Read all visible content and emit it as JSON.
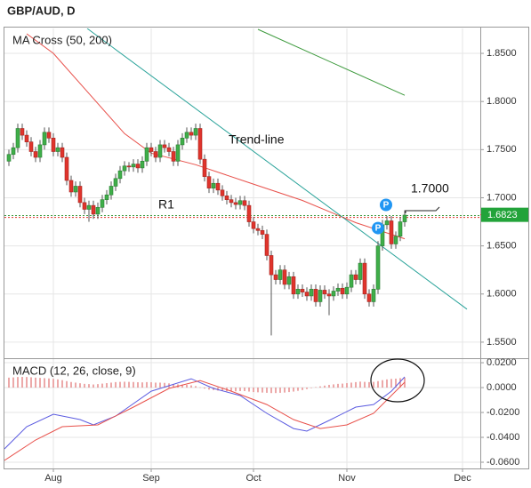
{
  "title": "GBP/AUD, D",
  "chart_data": [
    {
      "type": "candlestick",
      "title": "MA Cross (50, 200)",
      "xlim": [
        0,
        107
      ],
      "ylim": [
        1.5333,
        1.8759
      ],
      "grid": true,
      "yticks": [
        {
          "value": 1.55,
          "label": "1.5500"
        },
        {
          "value": 1.6,
          "label": "1.6000"
        },
        {
          "value": 1.65,
          "label": "1.6500"
        },
        {
          "value": 1.7,
          "label": "1.7000"
        },
        {
          "value": 1.75,
          "label": "1.7500"
        },
        {
          "value": 1.8,
          "label": "1.8000"
        },
        {
          "value": 1.85,
          "label": "1.8500"
        }
      ],
      "up_color": "#3fae49",
      "down_color": "#e0342c",
      "x": [
        1,
        2,
        3,
        4,
        5,
        6,
        7,
        8,
        9,
        10,
        11,
        12,
        13,
        14,
        15,
        16,
        17,
        18,
        19,
        20,
        21,
        22,
        23,
        24,
        25,
        26,
        27,
        28,
        29,
        30,
        31,
        32,
        33,
        34,
        35,
        36,
        37,
        38,
        39,
        40,
        41,
        42,
        43,
        44,
        45,
        46,
        47,
        48,
        49,
        50,
        51,
        52,
        53,
        54,
        55,
        56,
        57,
        58,
        59,
        60,
        61,
        62,
        63,
        64,
        65,
        66,
        67,
        68,
        69,
        70,
        71,
        72,
        73,
        74,
        75,
        76,
        77,
        78,
        79,
        80,
        81,
        82,
        83,
        84,
        85,
        86,
        87,
        88,
        89,
        90
      ],
      "open": [
        1.738,
        1.745,
        1.752,
        1.772,
        1.765,
        1.758,
        1.748,
        1.742,
        1.755,
        1.768,
        1.762,
        1.748,
        1.752,
        1.742,
        1.718,
        1.706,
        1.712,
        1.695,
        1.688,
        1.692,
        1.683,
        1.69,
        1.698,
        1.703,
        1.712,
        1.72,
        1.728,
        1.733,
        1.732,
        1.735,
        1.731,
        1.738,
        1.752,
        1.748,
        1.742,
        1.755,
        1.752,
        1.748,
        1.738,
        1.755,
        1.762,
        1.768,
        1.765,
        1.772,
        1.74,
        1.722,
        1.71,
        1.715,
        1.708,
        1.702,
        1.698,
        1.695,
        1.693,
        1.697,
        1.692,
        1.675,
        1.668,
        1.666,
        1.662,
        1.64,
        1.62,
        1.615,
        1.625,
        1.61,
        1.618,
        1.6,
        1.605,
        1.602,
        1.598,
        1.605,
        1.592,
        1.604,
        1.6,
        1.598,
        1.603,
        1.606,
        1.6,
        1.607,
        1.62,
        1.615,
        1.632,
        1.6,
        1.592,
        1.605,
        1.65,
        1.672,
        1.676,
        1.652,
        1.66,
        1.675
      ],
      "high": [
        1.75,
        1.757,
        1.777,
        1.777,
        1.77,
        1.763,
        1.753,
        1.76,
        1.773,
        1.773,
        1.767,
        1.757,
        1.757,
        1.747,
        1.723,
        1.717,
        1.717,
        1.7,
        1.697,
        1.697,
        1.695,
        1.703,
        1.708,
        1.717,
        1.725,
        1.733,
        1.738,
        1.737,
        1.74,
        1.74,
        1.743,
        1.757,
        1.757,
        1.753,
        1.76,
        1.76,
        1.757,
        1.753,
        1.76,
        1.767,
        1.773,
        1.773,
        1.777,
        1.777,
        1.745,
        1.727,
        1.72,
        1.72,
        1.713,
        1.707,
        1.703,
        1.7,
        1.702,
        1.702,
        1.697,
        1.68,
        1.673,
        1.671,
        1.667,
        1.645,
        1.625,
        1.63,
        1.63,
        1.623,
        1.623,
        1.61,
        1.61,
        1.607,
        1.61,
        1.61,
        1.609,
        1.609,
        1.605,
        1.608,
        1.611,
        1.611,
        1.612,
        1.625,
        1.625,
        1.637,
        1.637,
        1.605,
        1.61,
        1.655,
        1.677,
        1.681,
        1.681,
        1.665,
        1.68,
        1.687
      ],
      "low": [
        1.733,
        1.74,
        1.747,
        1.76,
        1.753,
        1.743,
        1.737,
        1.737,
        1.75,
        1.757,
        1.743,
        1.743,
        1.737,
        1.713,
        1.701,
        1.701,
        1.69,
        1.683,
        1.675,
        1.678,
        1.678,
        1.685,
        1.693,
        1.698,
        1.707,
        1.715,
        1.723,
        1.727,
        1.727,
        1.726,
        1.726,
        1.733,
        1.743,
        1.737,
        1.737,
        1.747,
        1.743,
        1.733,
        1.733,
        1.75,
        1.757,
        1.76,
        1.76,
        1.735,
        1.717,
        1.705,
        1.705,
        1.703,
        1.697,
        1.693,
        1.69,
        1.688,
        1.688,
        1.687,
        1.67,
        1.663,
        1.661,
        1.657,
        1.635,
        1.557,
        1.61,
        1.61,
        1.605,
        1.605,
        1.595,
        1.595,
        1.597,
        1.593,
        1.593,
        1.587,
        1.587,
        1.595,
        1.578,
        1.593,
        1.598,
        1.595,
        1.595,
        1.602,
        1.61,
        1.61,
        1.595,
        1.587,
        1.587,
        1.6,
        1.645,
        1.667,
        1.647,
        1.647,
        1.655,
        1.67
      ],
      "close": [
        1.745,
        1.752,
        1.772,
        1.765,
        1.758,
        1.748,
        1.742,
        1.755,
        1.768,
        1.762,
        1.748,
        1.752,
        1.742,
        1.718,
        1.706,
        1.712,
        1.695,
        1.688,
        1.692,
        1.683,
        1.69,
        1.698,
        1.703,
        1.712,
        1.72,
        1.728,
        1.733,
        1.732,
        1.735,
        1.731,
        1.738,
        1.752,
        1.748,
        1.742,
        1.755,
        1.752,
        1.748,
        1.738,
        1.755,
        1.762,
        1.768,
        1.765,
        1.772,
        1.74,
        1.722,
        1.71,
        1.715,
        1.708,
        1.702,
        1.698,
        1.695,
        1.693,
        1.697,
        1.692,
        1.675,
        1.668,
        1.666,
        1.662,
        1.64,
        1.62,
        1.615,
        1.625,
        1.61,
        1.618,
        1.6,
        1.605,
        1.602,
        1.598,
        1.605,
        1.592,
        1.604,
        1.6,
        1.598,
        1.603,
        1.606,
        1.6,
        1.607,
        1.62,
        1.615,
        1.632,
        1.6,
        1.592,
        1.605,
        1.65,
        1.672,
        1.676,
        1.652,
        1.66,
        1.675,
        1.682
      ],
      "lines": [
        {
          "color": "#e8504a",
          "x": [
            5,
            11,
            19,
            27,
            33,
            43,
            55,
            67,
            79,
            90
          ],
          "values": [
            1.8704,
            1.85,
            1.8083,
            1.7667,
            1.7463,
            1.7343,
            1.7157,
            1.6972,
            1.6741,
            1.6574
          ]
        },
        {
          "color": "#3d9a3d",
          "x": [
            57,
            90
          ],
          "values": [
            1.875,
            1.8065
          ]
        }
      ],
      "trend_line": {
        "label": "Trend-line",
        "color": "#2aa39a",
        "x": [
          18.6,
          104
        ],
        "values": [
          1.8759,
          1.5843
        ]
      },
      "levels": [
        {
          "label": "R1",
          "value": 1.6815,
          "color": "#3d9a3d"
        },
        {
          "value": 1.6796,
          "color": "#e0342c"
        }
      ],
      "last_price": 1.6823,
      "price_callout": "1.7000",
      "pivots": [
        {
          "text": "P",
          "x": 85.8,
          "value": 1.6926
        },
        {
          "text": "P",
          "x": 84,
          "value": 1.6685
        }
      ]
    },
    {
      "type": "macd",
      "title": "MACD (12, 26, close, 9)",
      "xlim": [
        0,
        107
      ],
      "ylim": [
        -0.065,
        0.0229
      ],
      "grid": true,
      "xticks": [
        {
          "value": 11,
          "label": "Aug"
        },
        {
          "value": 33,
          "label": "Sep"
        },
        {
          "value": 56,
          "label": "Oct"
        },
        {
          "value": 77,
          "label": "Nov"
        },
        {
          "value": 103,
          "label": "Dec"
        }
      ],
      "yticks": [
        {
          "value": 0.02,
          "label": "0.0200"
        },
        {
          "value": 0,
          "label": "0.0000"
        },
        {
          "value": -0.02,
          "label": "-0.0200"
        },
        {
          "value": -0.04,
          "label": "-0.0400"
        },
        {
          "value": -0.06,
          "label": "-0.0600"
        }
      ],
      "histogram": {
        "color": "#e07070",
        "x": [
          1,
          2,
          3,
          4,
          5,
          6,
          7,
          8,
          9,
          10,
          11,
          12,
          13,
          14,
          15,
          16,
          17,
          18,
          19,
          20,
          21,
          22,
          23,
          24,
          25,
          26,
          27,
          28,
          29,
          30,
          31,
          32,
          33,
          34,
          35,
          36,
          37,
          38,
          39,
          40,
          41,
          42,
          43,
          44,
          45,
          46,
          47,
          48,
          49,
          50,
          51,
          52,
          53,
          54,
          55,
          56,
          57,
          58,
          59,
          60,
          61,
          62,
          63,
          64,
          65,
          66,
          67,
          68,
          69,
          70,
          71,
          72,
          73,
          74,
          75,
          76,
          77,
          78,
          79,
          80,
          81,
          82,
          83,
          84,
          85,
          86,
          87,
          88,
          89,
          90
        ],
        "values": [
          0.008,
          0.0082,
          0.0085,
          0.0086,
          0.0085,
          0.0083,
          0.008,
          0.0078,
          0.0076,
          0.0074,
          0.007,
          0.0066,
          0.006,
          0.0052,
          0.0045,
          0.004,
          0.0035,
          0.003,
          0.0028,
          0.0025,
          0.0028,
          0.0032,
          0.0036,
          0.004,
          0.0044,
          0.0046,
          0.0047,
          0.0046,
          0.0045,
          0.0043,
          0.0042,
          0.0044,
          0.0043,
          0.004,
          0.004,
          0.0038,
          0.0034,
          0.0028,
          0.0026,
          0.0024,
          0.0022,
          0.0018,
          0.0012,
          0.0002,
          -0.0008,
          -0.0016,
          -0.002,
          -0.0024,
          -0.0028,
          -0.003,
          -0.003,
          -0.003,
          -0.0028,
          -0.0028,
          -0.0032,
          -0.0036,
          -0.0038,
          -0.004,
          -0.0042,
          -0.0044,
          -0.0044,
          -0.0042,
          -0.004,
          -0.0036,
          -0.0032,
          -0.0026,
          -0.002,
          -0.0012,
          -0.0004,
          0.0004,
          0.001,
          0.0016,
          0.0022,
          0.0026,
          0.003,
          0.0032,
          0.0036,
          0.004,
          0.0044,
          0.0048,
          0.0046,
          0.0044,
          0.0046,
          0.0052,
          0.006,
          0.0066,
          0.007,
          0.0072,
          0.0076,
          0.008
        ]
      },
      "lines": [
        {
          "color": "#5a5ae0",
          "x": [
            0,
            5,
            11,
            17,
            20,
            25,
            33,
            42,
            47,
            53,
            59,
            65,
            68,
            73,
            79,
            83,
            87,
            90
          ],
          "values": [
            -0.0493,
            -0.0314,
            -0.0214,
            -0.0257,
            -0.03,
            -0.0229,
            -0.0029,
            0.0071,
            -0.0007,
            -0.0064,
            -0.0207,
            -0.0329,
            -0.035,
            -0.0264,
            -0.0157,
            -0.0136,
            -0.0029,
            0.0086
          ]
        },
        {
          "color": "#e8504a",
          "x": [
            0,
            7,
            13,
            21,
            29,
            37,
            44,
            51,
            59,
            65,
            71,
            77,
            83,
            90
          ],
          "values": [
            -0.0586,
            -0.0421,
            -0.0314,
            -0.03,
            -0.0157,
            -0.0007,
            0.0057,
            -0.0029,
            -0.0136,
            -0.0257,
            -0.0329,
            -0.03,
            -0.0207,
            0.0043
          ]
        }
      ]
    }
  ]
}
